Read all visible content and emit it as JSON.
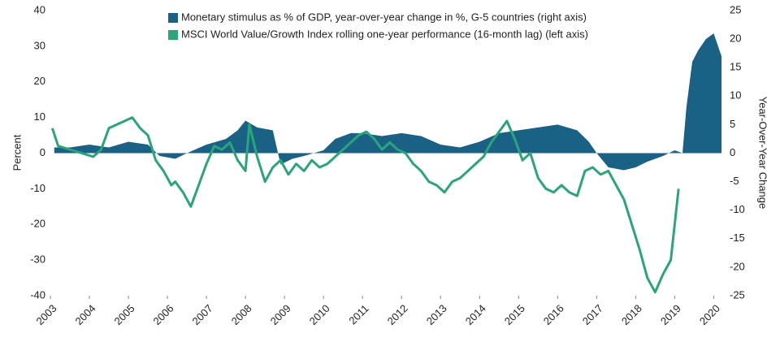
{
  "chart_data": {
    "type": "line",
    "y_label": "Percent",
    "y2_label": "Year-Over-Year Change",
    "xlim": [
      2003,
      2020.2
    ],
    "xticks": [
      2003,
      2004,
      2005,
      2006,
      2007,
      2008,
      2009,
      2010,
      2011,
      2012,
      2013,
      2014,
      2015,
      2016,
      2017,
      2018,
      2019,
      2020
    ],
    "ylim": [
      -40,
      40
    ],
    "yticks": [
      -40,
      -30,
      -20,
      -10,
      0,
      10,
      20,
      30,
      40
    ],
    "y2lim": [
      -25,
      25
    ],
    "y2ticks": [
      -25,
      -20,
      -15,
      -10,
      -5,
      0,
      5,
      10,
      15,
      20,
      25
    ],
    "series": [
      {
        "name": "Monetary stimulus as % of GDP, year-over-year change in %, G-5 countries (right axis)",
        "color": "#1a6186",
        "kind": "area",
        "axis": "y2",
        "x": [
          2003.1,
          2003.5,
          2004.0,
          2004.5,
          2005.0,
          2005.5,
          2005.8,
          2006.2,
          2006.5,
          2007.0,
          2007.5,
          2007.8,
          2008.0,
          2008.3,
          2008.7,
          2008.9,
          2009.2,
          2009.5,
          2010.0,
          2010.3,
          2010.7,
          2011.0,
          2011.5,
          2012.0,
          2012.5,
          2013.0,
          2013.5,
          2014.0,
          2014.5,
          2015.0,
          2015.5,
          2016.0,
          2016.5,
          2016.8,
          2017.0,
          2017.3,
          2017.7,
          2018.0,
          2018.3,
          2018.7,
          2019.0,
          2019.2,
          2019.3,
          2019.45,
          2019.6,
          2019.8,
          2020.0,
          2020.1,
          2020.2
        ],
        "values": [
          1,
          1,
          1.5,
          1,
          2,
          1.5,
          -0.5,
          -1,
          0,
          1.5,
          2.5,
          4,
          5.7,
          4.5,
          4,
          -2,
          -1,
          -0.5,
          0.5,
          2.5,
          3.5,
          3.5,
          3,
          3.5,
          3,
          1.5,
          1,
          2,
          3.5,
          4,
          4.5,
          5,
          4,
          2,
          0,
          -2.5,
          -3,
          -2.5,
          -1.5,
          -0.5,
          0.5,
          0,
          8,
          16,
          18,
          20,
          21,
          19,
          17
        ]
      },
      {
        "name": "MSCI World Value/Growth Index rolling one-year performance (16-month lag) (left axis)",
        "color": "#2aa57a",
        "kind": "line",
        "axis": "y",
        "x": [
          2003.05,
          2003.2,
          2003.5,
          2003.8,
          2004.1,
          2004.3,
          2004.5,
          2004.7,
          2004.9,
          2005.1,
          2005.3,
          2005.5,
          2005.7,
          2005.9,
          2006.1,
          2006.2,
          2006.4,
          2006.6,
          2006.8,
          2007.0,
          2007.2,
          2007.4,
          2007.6,
          2007.8,
          2008.0,
          2008.1,
          2008.3,
          2008.5,
          2008.7,
          2008.9,
          2009.1,
          2009.3,
          2009.5,
          2009.7,
          2009.9,
          2010.1,
          2010.3,
          2010.5,
          2010.7,
          2010.9,
          2011.1,
          2011.3,
          2011.5,
          2011.7,
          2011.9,
          2012.1,
          2012.3,
          2012.5,
          2012.7,
          2012.9,
          2013.1,
          2013.3,
          2013.5,
          2013.7,
          2013.9,
          2014.1,
          2014.3,
          2014.5,
          2014.7,
          2014.9,
          2015.1,
          2015.3,
          2015.5,
          2015.7,
          2015.9,
          2016.1,
          2016.3,
          2016.5,
          2016.7,
          2016.9,
          2017.1,
          2017.3,
          2017.5,
          2017.7,
          2017.9,
          2018.1,
          2018.3,
          2018.5,
          2018.7,
          2018.9,
          2019.1
        ],
        "values": [
          7,
          2,
          1,
          0,
          -1,
          1,
          7,
          8,
          9,
          10,
          7,
          5,
          -2,
          -5,
          -9,
          -8,
          -11,
          -15,
          -9,
          -3,
          2,
          1,
          3,
          -2,
          -5,
          8,
          -1,
          -8,
          -4,
          -2,
          -6,
          -3,
          -5,
          -2,
          -4,
          -3,
          -1,
          1,
          3,
          5,
          6,
          4,
          1,
          3,
          1,
          0,
          -3,
          -5,
          -8,
          -9,
          -11,
          -8,
          -7,
          -5,
          -3,
          -1,
          3,
          6,
          9,
          4,
          -2,
          0,
          -7,
          -10,
          -11,
          -9,
          -11,
          -12,
          -5,
          -4,
          -6,
          -5,
          -9,
          -13,
          -20,
          -27,
          -35,
          -39,
          -34,
          -30,
          -10
        ]
      }
    ]
  }
}
